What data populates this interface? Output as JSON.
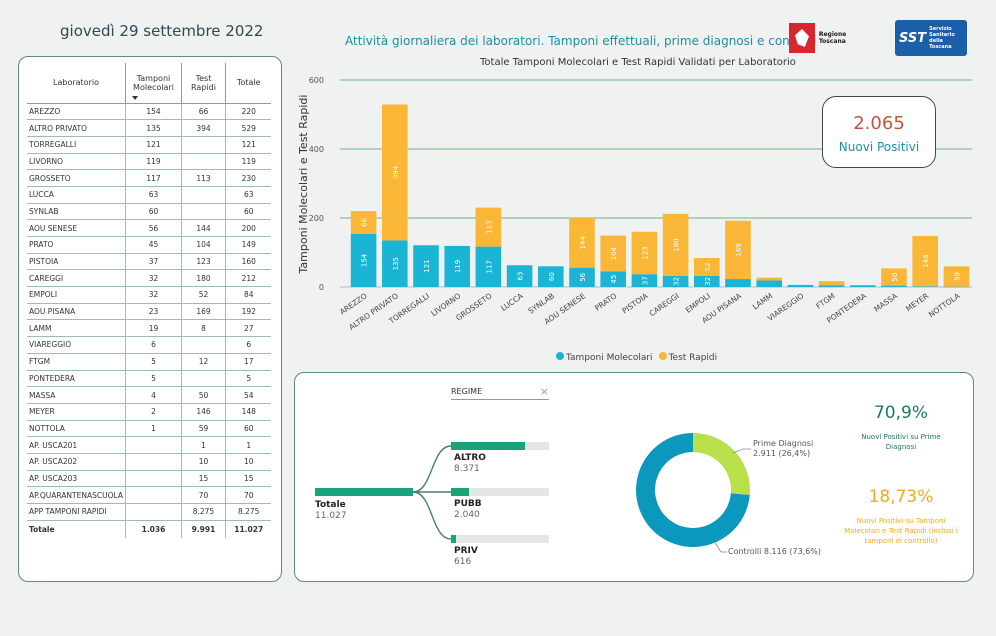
{
  "header": {
    "date": "giovedì 29 settembre 2022",
    "title": "Attività giornaliera dei laboratori. Tamponi effettuali, prime diagnosi e controlli",
    "logo_regione": "Regione Toscana",
    "logo_sst_big": "SST",
    "logo_sst_small": [
      "Servizio",
      "Sanitario",
      "della",
      "Toscana"
    ]
  },
  "table": {
    "headers": {
      "lab": "Laboratorio",
      "mol": "Tamponi Molecolari",
      "rap": "Test Rapidi",
      "tot": "Totale"
    },
    "rows": [
      {
        "name": "AREZZO",
        "mol": "154",
        "rap": "66",
        "tot": "220"
      },
      {
        "name": "ALTRO PRIVATO",
        "mol": "135",
        "rap": "394",
        "tot": "529"
      },
      {
        "name": "TORREGALLI",
        "mol": "121",
        "rap": "",
        "tot": "121"
      },
      {
        "name": "LIVORNO",
        "mol": "119",
        "rap": "",
        "tot": "119"
      },
      {
        "name": "GROSSETO",
        "mol": "117",
        "rap": "113",
        "tot": "230"
      },
      {
        "name": "LUCCA",
        "mol": "63",
        "rap": "",
        "tot": "63"
      },
      {
        "name": "SYNLAB",
        "mol": "60",
        "rap": "",
        "tot": "60"
      },
      {
        "name": "AOU SENESE",
        "mol": "56",
        "rap": "144",
        "tot": "200"
      },
      {
        "name": "PRATO",
        "mol": "45",
        "rap": "104",
        "tot": "149"
      },
      {
        "name": "PISTOIA",
        "mol": "37",
        "rap": "123",
        "tot": "160"
      },
      {
        "name": "CAREGGI",
        "mol": "32",
        "rap": "180",
        "tot": "212"
      },
      {
        "name": "EMPOLI",
        "mol": "32",
        "rap": "52",
        "tot": "84"
      },
      {
        "name": "AOU PISANA",
        "mol": "23",
        "rap": "169",
        "tot": "192"
      },
      {
        "name": "LAMM",
        "mol": "19",
        "rap": "8",
        "tot": "27"
      },
      {
        "name": "VIAREGGIO",
        "mol": "6",
        "rap": "",
        "tot": "6"
      },
      {
        "name": "FTGM",
        "mol": "5",
        "rap": "12",
        "tot": "17"
      },
      {
        "name": "PONTEDERA",
        "mol": "5",
        "rap": "",
        "tot": "5"
      },
      {
        "name": "MASSA",
        "mol": "4",
        "rap": "50",
        "tot": "54"
      },
      {
        "name": "MEYER",
        "mol": "2",
        "rap": "146",
        "tot": "148"
      },
      {
        "name": "NOTTOLA",
        "mol": "1",
        "rap": "59",
        "tot": "60"
      },
      {
        "name": "AP. USCA201",
        "mol": "",
        "rap": "1",
        "tot": "1"
      },
      {
        "name": "AP. USCA202",
        "mol": "",
        "rap": "10",
        "tot": "10"
      },
      {
        "name": "AP. USCA203",
        "mol": "",
        "rap": "15",
        "tot": "15"
      },
      {
        "name": "AP.QUARANTENASCUOLA",
        "mol": "",
        "rap": "70",
        "tot": "70"
      },
      {
        "name": "APP TAMPONI RAPIDI",
        "mol": "",
        "rap": "8.275",
        "tot": "8.275"
      }
    ],
    "total": {
      "name": "Totale",
      "mol": "1.036",
      "rap": "9.991",
      "tot": "11.027"
    }
  },
  "chart_data": {
    "type": "bar",
    "stacked": true,
    "title": "Totale Tamponi Molecolari e Test Rapidi Validati per Laboratorio",
    "ylabel": "Tamponi Molecolari e Test Rapidi",
    "ylim": [
      0,
      600
    ],
    "yticks": [
      "0",
      "200",
      "400",
      "600"
    ],
    "grid": true,
    "legend_position": "bottom",
    "categories": [
      "AREZZO",
      "ALTRO PRIVATO",
      "TORREGALLI",
      "LIVORNO",
      "GROSSETO",
      "LUCCA",
      "SYNLAB",
      "AOU SENESE",
      "PRATO",
      "PISTOIA",
      "CAREGGI",
      "EMPOLI",
      "AOU PISANA",
      "LAMM",
      "VIAREGGIO",
      "FTGM",
      "PONTEDERA",
      "MASSA",
      "MEYER",
      "NOTTOLA"
    ],
    "series": [
      {
        "name": "Tamponi Molecolari",
        "color": "#1ab5d5",
        "values": [
          154,
          135,
          121,
          119,
          117,
          63,
          60,
          56,
          45,
          37,
          32,
          32,
          23,
          19,
          6,
          5,
          5,
          4,
          2,
          1
        ]
      },
      {
        "name": "Test Rapidi",
        "color": "#f9b637",
        "values": [
          66,
          394,
          0,
          0,
          113,
          0,
          0,
          144,
          104,
          123,
          180,
          52,
          169,
          8,
          0,
          12,
          0,
          50,
          146,
          59
        ]
      }
    ],
    "labeled_min": 30
  },
  "kpi": {
    "value": "2.065",
    "label": "Nuovi Positivi"
  },
  "regime": {
    "title": "REGIME",
    "close": "×",
    "root": {
      "label": "Totale",
      "value": "11.027",
      "fraction": 1.0
    },
    "children": [
      {
        "label": "ALTRO",
        "value": "8.371",
        "fraction": 0.759
      },
      {
        "label": "PUBB",
        "value": "2.040",
        "fraction": 0.185
      },
      {
        "label": "PRIV",
        "value": "616",
        "fraction": 0.056
      }
    ]
  },
  "donut": {
    "slices": [
      {
        "name": "Prime Diagnosi",
        "value": 2911,
        "label": "2.911 (26,4%)",
        "color": "#b9e04b"
      },
      {
        "name": "Controlli",
        "value": 8116,
        "label": "Controlli 8.116 (73,6%)",
        "color": "#0c97bd"
      }
    ]
  },
  "stats": {
    "pd_value": "70,9%",
    "pd_label": "Nuovi Positivi su Prime Diagnosi",
    "pd_color": "#1b7a62",
    "all_value": "18,73%",
    "all_label": "Nuovi Positivi su Tamponi Molecolari e Test Rapidi (inclusi i tamponi di controllo)",
    "all_color": "#f3a91c"
  }
}
